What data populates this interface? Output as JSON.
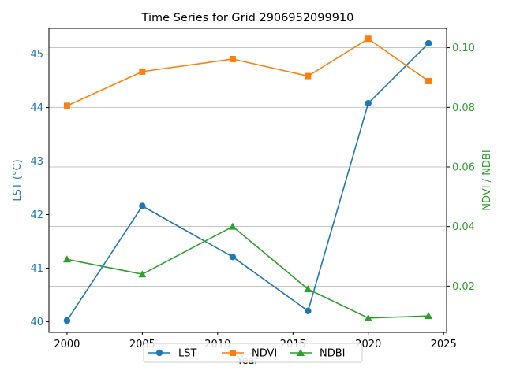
{
  "chart_data": {
    "type": "line",
    "title": "Time Series for Grid 2906952099910",
    "xlabel": "Year",
    "ylabel_left": "LST (°C)",
    "ylabel_right": "NDVI / NDBI",
    "xlim": [
      1998.8,
      2025.2
    ],
    "ylim_left": [
      39.8,
      45.48
    ],
    "ylim_right": [
      0.0045,
      0.1065
    ],
    "x_ticks": [
      "2000",
      "2005",
      "2010",
      "2015",
      "2020",
      "2025"
    ],
    "y_left_ticks": [
      "40",
      "41",
      "42",
      "43",
      "44",
      "45"
    ],
    "y_right_ticks": [
      "0.02",
      "0.04",
      "0.06",
      "0.08",
      "0.10"
    ],
    "grid": "horizontal-right-axis",
    "legend_position": "bottom-center",
    "colors": {
      "left_axis": "#1f77b4",
      "right_axis": "#2ca02c"
    },
    "series": [
      {
        "name": "LST",
        "axis": "left",
        "color": "#1f77b4",
        "marker": "circle",
        "x": [
          2000,
          2005,
          2011,
          2016,
          2020,
          2024
        ],
        "values": [
          40.02,
          42.16,
          41.21,
          40.2,
          44.08,
          45.2
        ]
      },
      {
        "name": "NDVI",
        "axis": "right",
        "color": "#ff7f0e",
        "marker": "square",
        "x": [
          2000,
          2005,
          2011,
          2016,
          2020,
          2024
        ],
        "values": [
          0.0805,
          0.092,
          0.0962,
          0.0905,
          0.103,
          0.0888
        ]
      },
      {
        "name": "NDBI",
        "axis": "right",
        "color": "#2ca02c",
        "marker": "triangle",
        "x": [
          2000,
          2005,
          2011,
          2016,
          2020,
          2024
        ],
        "values": [
          0.029,
          0.024,
          0.04,
          0.019,
          0.0093,
          0.01
        ]
      }
    ]
  }
}
